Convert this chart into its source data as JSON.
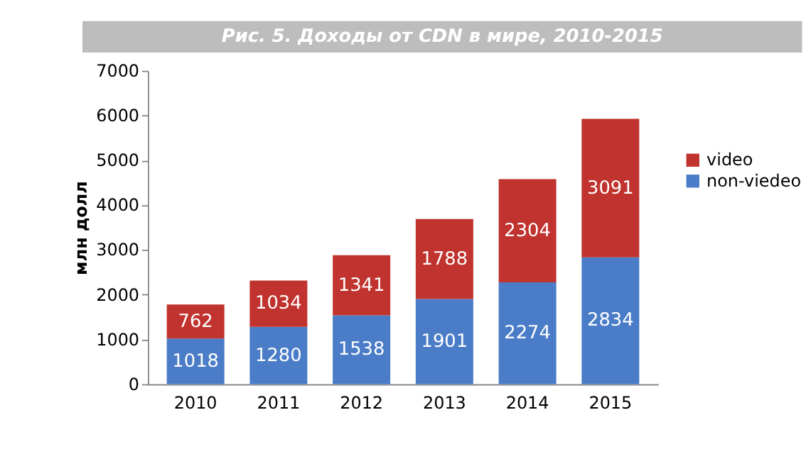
{
  "chart_data": {
    "type": "bar",
    "stacked": true,
    "title": "Рис. 5. Доходы от CDN в мире, 2010-2015",
    "ylabel": "млн долл",
    "categories": [
      "2010",
      "2011",
      "2012",
      "2013",
      "2014",
      "2015"
    ],
    "series": [
      {
        "name": "non-viedeo",
        "color": "#4a7cc7",
        "values": [
          1018,
          1280,
          1538,
          1901,
          2274,
          2834
        ]
      },
      {
        "name": "video",
        "color": "#c0332e",
        "values": [
          762,
          1034,
          1341,
          1788,
          2304,
          3091
        ]
      }
    ],
    "ylim": [
      0,
      7000
    ],
    "yticks": [
      0,
      1000,
      2000,
      3000,
      4000,
      5000,
      6000,
      7000
    ],
    "data_labels": true,
    "legend": "right",
    "grid": false
  }
}
